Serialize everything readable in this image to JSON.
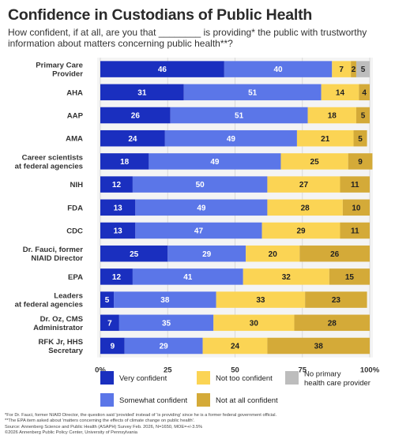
{
  "title": "Confidence in Custodians of Public Health",
  "subtitle": "How confident, if at all, are you that ________ is providing* the public with trustworthy information about matters concerning public health**?",
  "footnotes": [
    "*For Dr. Fauci, former NIAID Director, the question said 'provided' instead of 'is providing' since he is a former federal government official.",
    "**The EPA item asked about 'matters concerning the effects of climate change on public health'.",
    "Source: Annenberg Science and Public Health (ASAPH) Survey Feb. 2026, N=1650, MOE=+/-3.5%",
    "©2026 Annenberg Public Policy Center, University of Pennsylvania"
  ],
  "chart_data": {
    "type": "bar",
    "orientation": "horizontal",
    "stacked": true,
    "categories": [
      "Primary Care Provider",
      "AHA",
      "AAP",
      "AMA",
      "Career scientists at federal agencies",
      "NIH",
      "FDA",
      "CDC",
      "Dr. Fauci, former NIAID Director",
      "EPA",
      "Leaders at federal agencies",
      "Dr. Oz, CMS Administrator",
      "RFK Jr, HHS Secretary"
    ],
    "category_lines": [
      [
        "Primary Care",
        "Provider"
      ],
      [
        "AHA"
      ],
      [
        "AAP"
      ],
      [
        "AMA"
      ],
      [
        "Career scientists",
        "at federal agencies"
      ],
      [
        "NIH"
      ],
      [
        "FDA"
      ],
      [
        "CDC"
      ],
      [
        "Dr. Fauci, former",
        "NIAID Director"
      ],
      [
        "EPA"
      ],
      [
        "Leaders",
        "at federal agencies"
      ],
      [
        "Dr. Oz, CMS",
        "Administrator"
      ],
      [
        "RFK Jr, HHS",
        "Secretary"
      ]
    ],
    "series": [
      {
        "name": "Very confident",
        "color": "#1a2fbf",
        "label_color": "#ffffff",
        "values": [
          46,
          31,
          26,
          24,
          18,
          12,
          13,
          13,
          25,
          12,
          5,
          7,
          9
        ]
      },
      {
        "name": "Somewhat confident",
        "color": "#5b76e8",
        "label_color": "#ffffff",
        "values": [
          40,
          51,
          51,
          49,
          49,
          50,
          49,
          47,
          29,
          41,
          38,
          35,
          29
        ]
      },
      {
        "name": "Not too confident",
        "color": "#fbd454",
        "label_color": "#222222",
        "values": [
          7,
          14,
          18,
          21,
          25,
          27,
          28,
          29,
          20,
          32,
          33,
          30,
          24
        ]
      },
      {
        "name": "Not at all confident",
        "color": "#d4aa38",
        "label_color": "#222222",
        "values": [
          2,
          4,
          5,
          5,
          9,
          11,
          10,
          11,
          26,
          15,
          23,
          28,
          38
        ]
      },
      {
        "name": "No primary health care provider",
        "legend_lines": [
          "No primary",
          "health care provider"
        ],
        "color": "#bdbdbd",
        "label_color": "#222222",
        "values": [
          5,
          null,
          null,
          null,
          null,
          null,
          null,
          null,
          null,
          null,
          null,
          null,
          null
        ]
      }
    ],
    "xlim": [
      0,
      100
    ],
    "xticks": [
      "0%",
      "25",
      "50",
      "75",
      "100%"
    ],
    "grid": true,
    "legend_position": "bottom"
  }
}
